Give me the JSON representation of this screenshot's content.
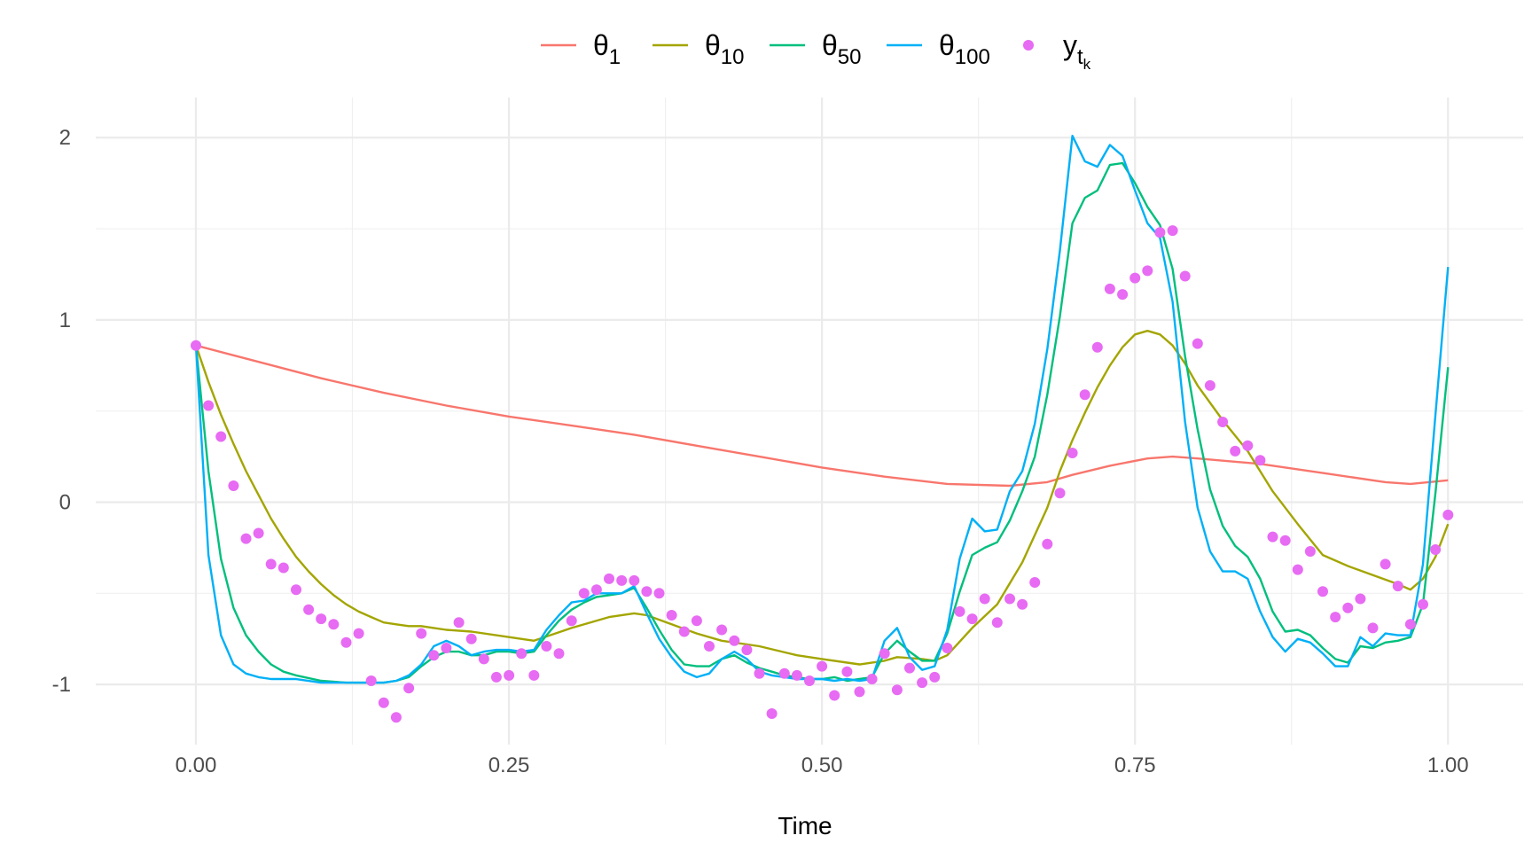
{
  "chart_data": {
    "type": "line",
    "xlabel": "Time",
    "ylabel": "",
    "xlim": [
      -0.08,
      1.06
    ],
    "ylim": [
      -1.33,
      2.22
    ],
    "x_ticks": [
      0,
      0.25,
      0.5,
      0.75,
      1
    ],
    "x_tick_labels": [
      "0.00",
      "0.25",
      "0.50",
      "0.75",
      "1.00"
    ],
    "y_ticks": [
      -1,
      0,
      1,
      2
    ],
    "y_tick_labels": [
      "-1",
      "0",
      "1",
      "2"
    ],
    "grid": true,
    "legend_position": "top",
    "legend": [
      {
        "key": "theta1",
        "symbol": "θ",
        "sub": "1",
        "kind": "line",
        "color": "#F8766D"
      },
      {
        "key": "theta10",
        "symbol": "θ",
        "sub": "10",
        "kind": "line",
        "color": "#A3A500"
      },
      {
        "key": "theta50",
        "symbol": "θ",
        "sub": "50",
        "kind": "line",
        "color": "#00BF7D"
      },
      {
        "key": "theta100",
        "symbol": "θ",
        "sub": "100",
        "kind": "line",
        "color": "#00B0F6"
      },
      {
        "key": "y",
        "symbol": "y",
        "sub": "t",
        "subsub": "k",
        "kind": "point",
        "color": "#E76BF3"
      }
    ],
    "series": [
      {
        "key": "theta1",
        "color": "#F8766D",
        "x": [
          0,
          0.05,
          0.1,
          0.15,
          0.2,
          0.25,
          0.3,
          0.35,
          0.4,
          0.45,
          0.5,
          0.55,
          0.6,
          0.65,
          0.68,
          0.7,
          0.73,
          0.76,
          0.78,
          0.8,
          0.85,
          0.9,
          0.95,
          0.97,
          1.0
        ],
        "y": [
          0.86,
          0.77,
          0.68,
          0.6,
          0.53,
          0.47,
          0.42,
          0.37,
          0.31,
          0.25,
          0.19,
          0.14,
          0.1,
          0.09,
          0.11,
          0.15,
          0.2,
          0.24,
          0.25,
          0.24,
          0.21,
          0.16,
          0.11,
          0.1,
          0.12
        ]
      },
      {
        "key": "theta10",
        "color": "#A3A500",
        "x": [
          0,
          0.01,
          0.02,
          0.03,
          0.04,
          0.05,
          0.06,
          0.07,
          0.08,
          0.09,
          0.1,
          0.11,
          0.12,
          0.13,
          0.14,
          0.15,
          0.16,
          0.17,
          0.18,
          0.19,
          0.2,
          0.22,
          0.25,
          0.27,
          0.3,
          0.33,
          0.35,
          0.36,
          0.38,
          0.4,
          0.42,
          0.45,
          0.48,
          0.5,
          0.53,
          0.55,
          0.56,
          0.58,
          0.59,
          0.6,
          0.62,
          0.64,
          0.66,
          0.68,
          0.69,
          0.7,
          0.71,
          0.72,
          0.73,
          0.74,
          0.75,
          0.76,
          0.77,
          0.78,
          0.79,
          0.8,
          0.82,
          0.84,
          0.86,
          0.88,
          0.9,
          0.92,
          0.94,
          0.96,
          0.97,
          0.98,
          0.99,
          1.0
        ],
        "y": [
          0.86,
          0.66,
          0.48,
          0.32,
          0.17,
          0.04,
          -0.09,
          -0.2,
          -0.3,
          -0.38,
          -0.45,
          -0.51,
          -0.56,
          -0.6,
          -0.63,
          -0.66,
          -0.67,
          -0.68,
          -0.68,
          -0.69,
          -0.7,
          -0.71,
          -0.74,
          -0.76,
          -0.69,
          -0.63,
          -0.61,
          -0.62,
          -0.67,
          -0.72,
          -0.76,
          -0.79,
          -0.84,
          -0.86,
          -0.89,
          -0.87,
          -0.85,
          -0.86,
          -0.87,
          -0.84,
          -0.69,
          -0.56,
          -0.33,
          -0.03,
          0.17,
          0.34,
          0.49,
          0.63,
          0.75,
          0.85,
          0.92,
          0.94,
          0.92,
          0.86,
          0.76,
          0.64,
          0.45,
          0.28,
          0.06,
          -0.12,
          -0.29,
          -0.35,
          -0.4,
          -0.45,
          -0.48,
          -0.42,
          -0.3,
          -0.12
        ]
      },
      {
        "key": "theta50",
        "color": "#00BF7D",
        "x": [
          0,
          0.01,
          0.02,
          0.03,
          0.04,
          0.05,
          0.06,
          0.07,
          0.08,
          0.1,
          0.12,
          0.14,
          0.15,
          0.16,
          0.17,
          0.18,
          0.19,
          0.2,
          0.21,
          0.22,
          0.23,
          0.24,
          0.25,
          0.26,
          0.27,
          0.28,
          0.29,
          0.3,
          0.31,
          0.32,
          0.33,
          0.34,
          0.35,
          0.36,
          0.37,
          0.38,
          0.39,
          0.4,
          0.41,
          0.42,
          0.43,
          0.44,
          0.45,
          0.46,
          0.47,
          0.48,
          0.49,
          0.5,
          0.51,
          0.52,
          0.53,
          0.54,
          0.55,
          0.56,
          0.57,
          0.58,
          0.59,
          0.6,
          0.61,
          0.62,
          0.63,
          0.64,
          0.65,
          0.66,
          0.67,
          0.68,
          0.69,
          0.7,
          0.71,
          0.72,
          0.73,
          0.74,
          0.75,
          0.76,
          0.77,
          0.78,
          0.79,
          0.8,
          0.81,
          0.82,
          0.83,
          0.84,
          0.85,
          0.86,
          0.87,
          0.88,
          0.89,
          0.9,
          0.91,
          0.92,
          0.93,
          0.94,
          0.95,
          0.96,
          0.97,
          0.98,
          0.99,
          1.0
        ],
        "y": [
          0.86,
          0.17,
          -0.31,
          -0.58,
          -0.73,
          -0.82,
          -0.89,
          -0.93,
          -0.95,
          -0.98,
          -0.99,
          -0.99,
          -0.99,
          -0.98,
          -0.96,
          -0.9,
          -0.85,
          -0.82,
          -0.82,
          -0.84,
          -0.84,
          -0.82,
          -0.82,
          -0.83,
          -0.82,
          -0.73,
          -0.65,
          -0.59,
          -0.55,
          -0.52,
          -0.51,
          -0.5,
          -0.47,
          -0.58,
          -0.7,
          -0.81,
          -0.89,
          -0.9,
          -0.9,
          -0.86,
          -0.84,
          -0.88,
          -0.91,
          -0.93,
          -0.95,
          -0.96,
          -0.97,
          -0.97,
          -0.96,
          -0.98,
          -0.97,
          -0.96,
          -0.83,
          -0.76,
          -0.82,
          -0.87,
          -0.87,
          -0.72,
          -0.49,
          -0.29,
          -0.25,
          -0.22,
          -0.1,
          0.06,
          0.25,
          0.59,
          1.02,
          1.53,
          1.67,
          1.71,
          1.85,
          1.86,
          1.75,
          1.62,
          1.52,
          1.28,
          0.8,
          0.4,
          0.07,
          -0.13,
          -0.24,
          -0.3,
          -0.42,
          -0.6,
          -0.71,
          -0.7,
          -0.73,
          -0.8,
          -0.86,
          -0.88,
          -0.79,
          -0.8,
          -0.77,
          -0.76,
          -0.74,
          -0.56,
          0.05,
          0.74
        ]
      },
      {
        "key": "theta100",
        "color": "#00B0F6",
        "x": [
          0,
          0.01,
          0.02,
          0.03,
          0.04,
          0.05,
          0.06,
          0.07,
          0.08,
          0.1,
          0.12,
          0.14,
          0.15,
          0.16,
          0.17,
          0.18,
          0.19,
          0.2,
          0.21,
          0.22,
          0.23,
          0.24,
          0.25,
          0.26,
          0.27,
          0.28,
          0.29,
          0.3,
          0.31,
          0.32,
          0.33,
          0.34,
          0.35,
          0.36,
          0.37,
          0.38,
          0.39,
          0.4,
          0.41,
          0.42,
          0.43,
          0.44,
          0.45,
          0.46,
          0.47,
          0.48,
          0.49,
          0.5,
          0.51,
          0.52,
          0.53,
          0.54,
          0.55,
          0.56,
          0.57,
          0.58,
          0.59,
          0.6,
          0.61,
          0.62,
          0.63,
          0.64,
          0.65,
          0.66,
          0.67,
          0.68,
          0.69,
          0.7,
          0.71,
          0.72,
          0.73,
          0.74,
          0.75,
          0.76,
          0.77,
          0.78,
          0.79,
          0.8,
          0.81,
          0.82,
          0.83,
          0.84,
          0.85,
          0.86,
          0.87,
          0.88,
          0.89,
          0.9,
          0.91,
          0.92,
          0.93,
          0.94,
          0.95,
          0.96,
          0.97,
          0.98,
          0.99,
          1.0
        ],
        "y": [
          0.86,
          -0.29,
          -0.73,
          -0.89,
          -0.94,
          -0.96,
          -0.97,
          -0.97,
          -0.97,
          -0.99,
          -0.99,
          -0.99,
          -0.99,
          -0.98,
          -0.95,
          -0.89,
          -0.79,
          -0.76,
          -0.79,
          -0.84,
          -0.82,
          -0.81,
          -0.81,
          -0.82,
          -0.81,
          -0.7,
          -0.62,
          -0.55,
          -0.54,
          -0.5,
          -0.5,
          -0.5,
          -0.46,
          -0.61,
          -0.75,
          -0.85,
          -0.93,
          -0.96,
          -0.94,
          -0.86,
          -0.82,
          -0.86,
          -0.93,
          -0.95,
          -0.96,
          -0.97,
          -0.97,
          -0.97,
          -0.98,
          -0.97,
          -0.98,
          -0.97,
          -0.76,
          -0.69,
          -0.85,
          -0.92,
          -0.9,
          -0.7,
          -0.31,
          -0.09,
          -0.16,
          -0.15,
          0.06,
          0.17,
          0.43,
          0.84,
          1.38,
          2.01,
          1.87,
          1.84,
          1.96,
          1.9,
          1.71,
          1.53,
          1.45,
          1.1,
          0.44,
          -0.03,
          -0.27,
          -0.38,
          -0.38,
          -0.42,
          -0.6,
          -0.74,
          -0.82,
          -0.75,
          -0.77,
          -0.83,
          -0.9,
          -0.9,
          -0.74,
          -0.79,
          -0.72,
          -0.73,
          -0.73,
          -0.34,
          0.48,
          1.29
        ]
      }
    ],
    "points": {
      "key": "y",
      "color": "#E76BF3",
      "x": [
        0,
        0.01,
        0.02,
        0.03,
        0.04,
        0.05,
        0.06,
        0.07,
        0.08,
        0.09,
        0.1,
        0.11,
        0.12,
        0.13,
        0.14,
        0.15,
        0.16,
        0.17,
        0.18,
        0.19,
        0.2,
        0.21,
        0.22,
        0.23,
        0.24,
        0.25,
        0.26,
        0.27,
        0.28,
        0.29,
        0.3,
        0.31,
        0.32,
        0.33,
        0.34,
        0.35,
        0.36,
        0.37,
        0.38,
        0.39,
        0.4,
        0.41,
        0.42,
        0.43,
        0.44,
        0.45,
        0.46,
        0.47,
        0.48,
        0.49,
        0.5,
        0.51,
        0.52,
        0.53,
        0.54,
        0.55,
        0.56,
        0.57,
        0.58,
        0.59,
        0.6,
        0.61,
        0.62,
        0.63,
        0.64,
        0.65,
        0.66,
        0.67,
        0.68,
        0.69,
        0.7,
        0.71,
        0.72,
        0.73,
        0.74,
        0.75,
        0.76,
        0.77,
        0.78,
        0.79,
        0.8,
        0.81,
        0.82,
        0.83,
        0.84,
        0.85,
        0.86,
        0.87,
        0.88,
        0.89,
        0.9,
        0.91,
        0.92,
        0.93,
        0.94,
        0.95,
        0.96,
        0.97,
        0.98,
        0.99,
        1.0
      ],
      "y": [
        0.86,
        0.53,
        0.36,
        0.09,
        -0.2,
        -0.17,
        -0.34,
        -0.36,
        -0.48,
        -0.59,
        -0.64,
        -0.67,
        -0.77,
        -0.72,
        -0.98,
        -1.1,
        -1.18,
        -1.02,
        -0.72,
        -0.84,
        -0.8,
        -0.66,
        -0.75,
        -0.86,
        -0.96,
        -0.95,
        -0.83,
        -0.95,
        -0.79,
        -0.83,
        -0.65,
        -0.5,
        -0.48,
        -0.42,
        -0.43,
        -0.43,
        -0.49,
        -0.5,
        -0.62,
        -0.71,
        -0.65,
        -0.79,
        -0.7,
        -0.76,
        -0.81,
        -0.94,
        -1.16,
        -0.94,
        -0.95,
        -0.98,
        -0.9,
        -1.06,
        -0.93,
        -1.04,
        -0.97,
        -0.83,
        -1.03,
        -0.91,
        -0.99,
        -0.96,
        -0.8,
        -0.6,
        -0.64,
        -0.53,
        -0.66,
        -0.53,
        -0.56,
        -0.44,
        -0.23,
        0.05,
        0.27,
        0.59,
        0.85,
        1.17,
        1.14,
        1.23,
        1.27,
        1.48,
        1.49,
        1.24,
        0.87,
        0.64,
        0.44,
        0.28,
        0.31,
        0.23,
        -0.19,
        -0.21,
        -0.37,
        -0.27,
        -0.49,
        -0.63,
        -0.58,
        -0.53,
        -0.69,
        -0.34,
        -0.46,
        -0.67,
        -0.56,
        -0.26,
        -0.07
      ]
    }
  }
}
